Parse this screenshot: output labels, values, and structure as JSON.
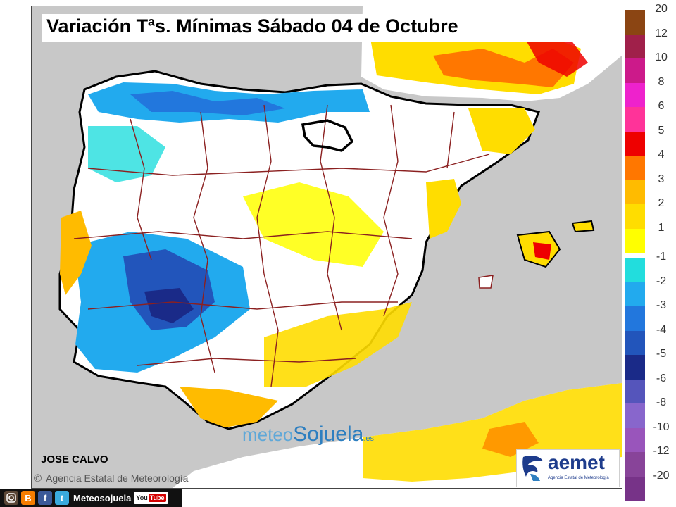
{
  "title": "Variación Tªs. Mínimas Sábado 04 de Octubre",
  "author": "JOSE CALVO",
  "copyright_symbol": "©",
  "agency_line": "Agencia Estatal de Meteorología",
  "watermark": {
    "meteo": "meteo",
    "sojuela": "Sojuela",
    "es": ".es"
  },
  "aemet": {
    "name": "aemet",
    "subtitle": "Agencia Estatal de Meteorología"
  },
  "social": {
    "handle": "Meteosojuela",
    "youtube_you": "You",
    "youtube_tube": "Tube",
    "icons": [
      "instagram-icon",
      "blogger-icon",
      "facebook-icon",
      "twitter-icon",
      "youtube-icon"
    ],
    "icon_glyphs": {
      "blogger": "B",
      "facebook": "f",
      "twitter": "t"
    }
  },
  "legend": {
    "positive": [
      {
        "label": "20",
        "color": "#8b4513"
      },
      {
        "label": "12",
        "color": "#a0204a"
      },
      {
        "label": "10",
        "color": "#cc1a8a"
      },
      {
        "label": "8",
        "color": "#ee22cc"
      },
      {
        "label": "6",
        "color": "#ff3399"
      },
      {
        "label": "5",
        "color": "#ee0000"
      },
      {
        "label": "4",
        "color": "#ff7700"
      },
      {
        "label": "3",
        "color": "#ffbb00"
      },
      {
        "label": "2",
        "color": "#ffdd00"
      },
      {
        "label": "1",
        "color": "#ffff00"
      }
    ],
    "negative": [
      {
        "label": "-1",
        "color": "#22dddd"
      },
      {
        "label": "-2",
        "color": "#22aaee"
      },
      {
        "label": "-3",
        "color": "#2277dd"
      },
      {
        "label": "-4",
        "color": "#2255bb"
      },
      {
        "label": "-5",
        "color": "#1a2a88"
      },
      {
        "label": "-6",
        "color": "#5555bb"
      },
      {
        "label": "-8",
        "color": "#8866cc"
      },
      {
        "label": "-10",
        "color": "#9955bb"
      },
      {
        "label": "-12",
        "color": "#884499"
      },
      {
        "label": "-20",
        "color": "#773388"
      }
    ]
  },
  "colors": {
    "sea": "#c8c8c8",
    "land": "#ffffff",
    "province_border": "#8b2020",
    "coast": "#000000"
  }
}
